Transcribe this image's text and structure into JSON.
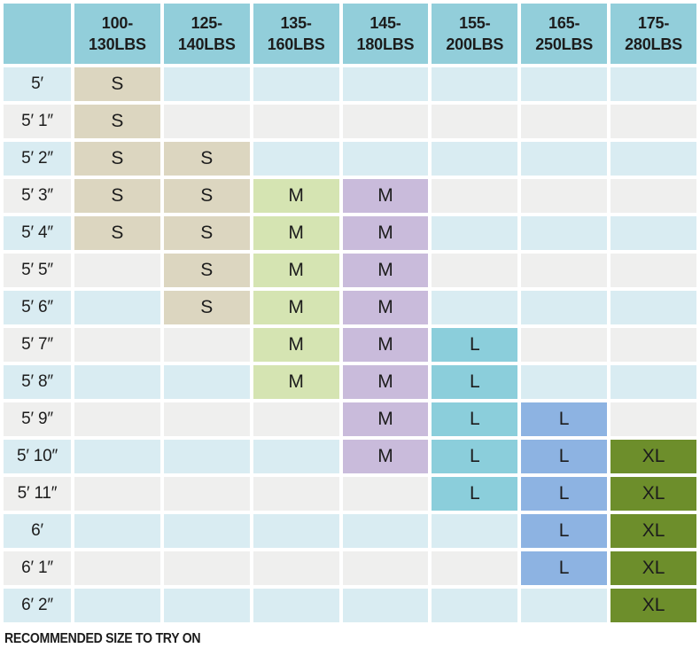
{
  "colors": {
    "header_bg": "#92CEDA",
    "row_alt_blue": "#D9ECF2",
    "row_alt_grey": "#EFEFEE",
    "text": "#1C1C1C"
  },
  "chart_data": {
    "type": "table",
    "corner_label": "",
    "weight_columns": [
      {
        "label": "100-\n130LBS",
        "fill": "#DCD6C0"
      },
      {
        "label": "125-\n140LBS",
        "fill": "#DCD6C0"
      },
      {
        "label": "135-\n160LBS",
        "fill": "#D5E4B2"
      },
      {
        "label": "145-\n180LBS",
        "fill": "#C9BBDB"
      },
      {
        "label": "155-\n200LBS",
        "fill": "#8BCEDB"
      },
      {
        "label": "165-\n250LBS",
        "fill": "#8DB3E2"
      },
      {
        "label": "175-\n280LBS",
        "fill": "#6D8E2B"
      }
    ],
    "height_rows": [
      {
        "height": "5′",
        "cells": [
          "S",
          "",
          "",
          "",
          "",
          "",
          ""
        ]
      },
      {
        "height": "5′ 1″",
        "cells": [
          "S",
          "",
          "",
          "",
          "",
          "",
          ""
        ]
      },
      {
        "height": "5′ 2″",
        "cells": [
          "S",
          "S",
          "",
          "",
          "",
          "",
          ""
        ]
      },
      {
        "height": "5′ 3″",
        "cells": [
          "S",
          "S",
          "M",
          "M",
          "",
          "",
          ""
        ]
      },
      {
        "height": "5′ 4″",
        "cells": [
          "S",
          "S",
          "M",
          "M",
          "",
          "",
          ""
        ]
      },
      {
        "height": "5′ 5″",
        "cells": [
          "",
          "S",
          "M",
          "M",
          "",
          "",
          ""
        ]
      },
      {
        "height": "5′ 6″",
        "cells": [
          "",
          "S",
          "M",
          "M",
          "",
          "",
          ""
        ]
      },
      {
        "height": "5′ 7″",
        "cells": [
          "",
          "",
          "M",
          "M",
          "L",
          "",
          ""
        ]
      },
      {
        "height": "5′ 8″",
        "cells": [
          "",
          "",
          "M",
          "M",
          "L",
          "",
          ""
        ]
      },
      {
        "height": "5′ 9″",
        "cells": [
          "",
          "",
          "",
          "M",
          "L",
          "L",
          ""
        ]
      },
      {
        "height": "5′ 10″",
        "cells": [
          "",
          "",
          "",
          "M",
          "L",
          "L",
          "XL"
        ]
      },
      {
        "height": "5′ 11″",
        "cells": [
          "",
          "",
          "",
          "",
          "L",
          "L",
          "XL"
        ]
      },
      {
        "height": "6′",
        "cells": [
          "",
          "",
          "",
          "",
          "",
          "L",
          "XL"
        ]
      },
      {
        "height": "6′ 1″",
        "cells": [
          "",
          "",
          "",
          "",
          "",
          "L",
          "XL"
        ]
      },
      {
        "height": "6′ 2″",
        "cells": [
          "",
          "",
          "",
          "",
          "",
          "",
          "XL"
        ]
      }
    ],
    "legend_note": "RECOMMENDED SIZE TO TRY ON"
  }
}
